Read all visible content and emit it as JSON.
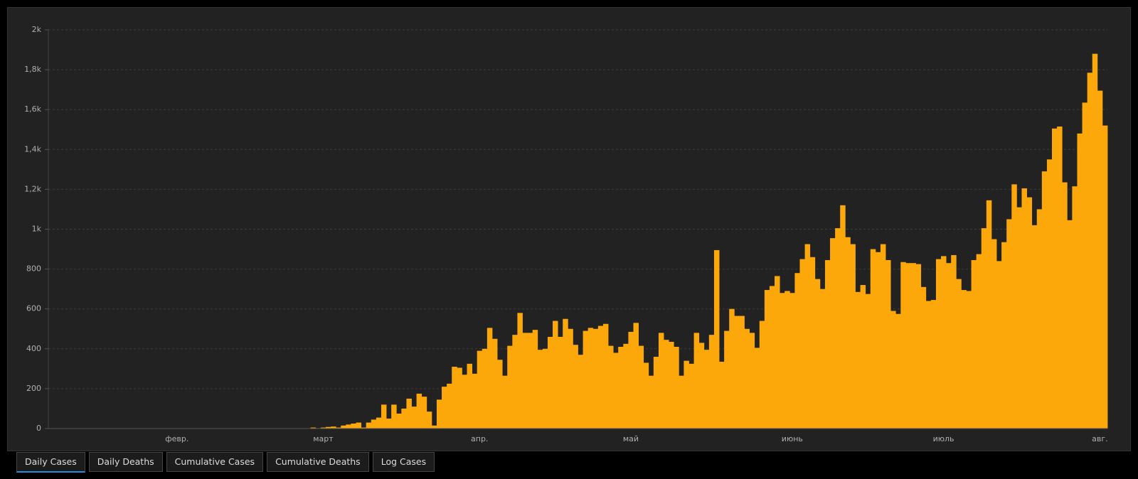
{
  "chart_data": {
    "type": "bar",
    "categories": [
      null,
      null,
      null,
      null,
      null,
      null,
      null,
      null,
      null,
      null,
      null,
      null,
      null,
      null,
      null,
      null,
      null,
      null,
      null,
      null,
      null,
      null,
      null,
      null,
      null,
      "февр.",
      null,
      null,
      null,
      null,
      null,
      null,
      null,
      null,
      null,
      null,
      null,
      null,
      null,
      null,
      null,
      null,
      null,
      null,
      null,
      null,
      null,
      null,
      null,
      null,
      null,
      null,
      null,
      null,
      "март",
      null,
      null,
      null,
      null,
      null,
      null,
      null,
      null,
      null,
      null,
      null,
      null,
      null,
      null,
      null,
      null,
      null,
      null,
      null,
      null,
      null,
      null,
      null,
      null,
      null,
      null,
      null,
      null,
      null,
      null,
      "апр.",
      null,
      null,
      null,
      null,
      null,
      null,
      null,
      null,
      null,
      null,
      null,
      null,
      null,
      null,
      null,
      null,
      null,
      null,
      null,
      null,
      null,
      null,
      null,
      null,
      null,
      null,
      null,
      null,
      null,
      "май",
      null,
      null,
      null,
      null,
      null,
      null,
      null,
      null,
      null,
      null,
      null,
      null,
      null,
      null,
      null,
      null,
      null,
      null,
      null,
      null,
      null,
      null,
      null,
      null,
      null,
      null,
      null,
      null,
      null,
      null,
      null,
      "июнь",
      null,
      null,
      null,
      null,
      null,
      null,
      null,
      null,
      null,
      null,
      null,
      null,
      null,
      null,
      null,
      null,
      null,
      null,
      null,
      null,
      null,
      null,
      null,
      null,
      null,
      null,
      null,
      null,
      null,
      "июль",
      null,
      null,
      null,
      null,
      null,
      null,
      null,
      null,
      null,
      null,
      null,
      null,
      null,
      null,
      null,
      null,
      null,
      null,
      null,
      null,
      null,
      null,
      null,
      null,
      null,
      null,
      null,
      null,
      null,
      null,
      "авг.",
      null
    ],
    "values": [
      0,
      0,
      0,
      0,
      0,
      0,
      0,
      0,
      0,
      0,
      0,
      0,
      0,
      0,
      0,
      0,
      0,
      0,
      0,
      0,
      0,
      0,
      0,
      0,
      0,
      0,
      0,
      0,
      0,
      0,
      0,
      0,
      0,
      0,
      0,
      0,
      0,
      0,
      0,
      0,
      0,
      0,
      0,
      0,
      0,
      0,
      0,
      0,
      0,
      0,
      0,
      0,
      5,
      2,
      5,
      8,
      10,
      5,
      15,
      20,
      25,
      30,
      5,
      30,
      45,
      55,
      120,
      50,
      120,
      75,
      100,
      150,
      110,
      175,
      160,
      85,
      15,
      145,
      210,
      225,
      310,
      305,
      270,
      325,
      275,
      390,
      400,
      505,
      450,
      345,
      265,
      415,
      470,
      580,
      480,
      480,
      495,
      395,
      400,
      460,
      540,
      460,
      550,
      500,
      420,
      370,
      490,
      505,
      500,
      515,
      525,
      415,
      380,
      410,
      425,
      485,
      530,
      415,
      330,
      265,
      360,
      480,
      445,
      435,
      410,
      265,
      340,
      325,
      480,
      430,
      395,
      470,
      895,
      335,
      490,
      600,
      565,
      565,
      500,
      480,
      405,
      540,
      695,
      715,
      765,
      680,
      690,
      680,
      780,
      850,
      925,
      860,
      750,
      700,
      845,
      955,
      1005,
      1120,
      960,
      925,
      685,
      720,
      675,
      900,
      885,
      925,
      845,
      590,
      575,
      835,
      830,
      830,
      825,
      710,
      640,
      645,
      850,
      865,
      830,
      870,
      750,
      695,
      690,
      845,
      875,
      1005,
      1145,
      950,
      840,
      935,
      1050,
      1225,
      1110,
      1205,
      1160,
      1020,
      1100,
      1290,
      1350,
      1505,
      1515,
      1235,
      1045,
      1215,
      1480,
      1635,
      1785,
      1880,
      1695,
      1520
    ],
    "color": "#fca80b",
    "ylim": [
      0,
      2000
    ],
    "yticks": [
      0,
      200,
      400,
      600,
      800,
      {
        "value": 1000,
        "label": "1k"
      },
      {
        "value": 1200,
        "label": "1,2k"
      },
      {
        "value": 1400,
        "label": "1,4k"
      },
      {
        "value": 1600,
        "label": "1,6k"
      },
      {
        "value": 1800,
        "label": "1,8k"
      },
      {
        "value": 2000,
        "label": "2k"
      }
    ],
    "grid": true
  },
  "tabs": [
    {
      "label": "Daily Cases",
      "active": true
    },
    {
      "label": "Daily Deaths",
      "active": false
    },
    {
      "label": "Cumulative Cases",
      "active": false
    },
    {
      "label": "Cumulative Deaths",
      "active": false
    },
    {
      "label": "Log Cases",
      "active": false
    }
  ]
}
